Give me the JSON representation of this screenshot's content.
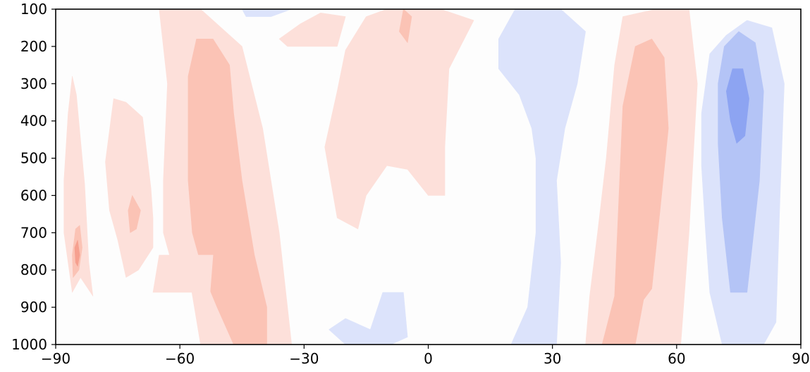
{
  "chart_data": {
    "type": "contourf",
    "title": "",
    "xlabel": "",
    "ylabel": "",
    "xlim": [
      -90,
      90
    ],
    "ylim": [
      1000,
      100
    ],
    "y_inverted": true,
    "x_ticks": [
      -90,
      -60,
      -30,
      0,
      30,
      60,
      90
    ],
    "x_tick_labels": [
      "−90",
      "−60",
      "−30",
      "0",
      "30",
      "60",
      "90"
    ],
    "y_ticks": [
      100,
      200,
      300,
      400,
      500,
      600,
      700,
      800,
      900,
      1000
    ],
    "y_tick_labels": [
      "100",
      "200",
      "300",
      "400",
      "500",
      "600",
      "700",
      "800",
      "900",
      "1000"
    ],
    "grid": false,
    "colormap": "diverging blue-white-red",
    "level_colors": {
      "neg3": "#8da4f2",
      "neg2": "#b4c4f6",
      "neg1": "#dce3fb",
      "zero": "#fdfdfd",
      "pos1": "#fde0da",
      "pos2": "#fbc3b5",
      "pos3": "#f6a08f",
      "pos4": "#f4826b"
    },
    "regions": [
      {
        "level": "pos1",
        "points": [
          [
            -65,
            100
          ],
          [
            -55,
            100
          ],
          [
            -45,
            200
          ],
          [
            -40,
            420
          ],
          [
            -36,
            700
          ],
          [
            -33,
            1000
          ],
          [
            -55,
            1000
          ],
          [
            -58,
            800
          ],
          [
            -62,
            780
          ],
          [
            -64,
            700
          ],
          [
            -64,
            560
          ],
          [
            -63,
            300
          ]
        ]
      },
      {
        "level": "pos2",
        "points": [
          [
            -58,
            280
          ],
          [
            -56,
            180
          ],
          [
            -52,
            180
          ],
          [
            -48,
            250
          ],
          [
            -47,
            380
          ],
          [
            -45,
            560
          ],
          [
            -42,
            760
          ],
          [
            -39,
            900
          ],
          [
            -39,
            1000
          ],
          [
            -47,
            1000
          ],
          [
            -51,
            900
          ],
          [
            -54,
            820
          ],
          [
            -57,
            700
          ],
          [
            -58,
            560
          ],
          [
            -58,
            420
          ]
        ]
      },
      {
        "level": "pos1",
        "points": [
          [
            -88,
            560
          ],
          [
            -87,
            380
          ],
          [
            -86,
            280
          ],
          [
            -85,
            330
          ],
          [
            -83,
            570
          ],
          [
            -82,
            780
          ],
          [
            -81,
            870
          ],
          [
            -84,
            820
          ],
          [
            -86,
            860
          ],
          [
            -88,
            700
          ]
        ]
      },
      {
        "level": "pos2",
        "points": [
          [
            -86,
            760
          ],
          [
            -85.2,
            690
          ],
          [
            -84.2,
            680
          ],
          [
            -83.6,
            740
          ],
          [
            -84.4,
            800
          ],
          [
            -85.8,
            820
          ]
        ]
      },
      {
        "level": "pos3",
        "points": [
          [
            -85.4,
            740
          ],
          [
            -84.7,
            720
          ],
          [
            -84.2,
            760
          ],
          [
            -84.7,
            790
          ],
          [
            -85.2,
            780
          ]
        ]
      },
      {
        "level": "pos1",
        "points": [
          [
            -78,
            510
          ],
          [
            -76,
            340
          ],
          [
            -73,
            350
          ],
          [
            -69,
            390
          ],
          [
            -67,
            580
          ],
          [
            -66.5,
            660
          ],
          [
            -66.5,
            740
          ],
          [
            -70,
            800
          ],
          [
            -73,
            820
          ],
          [
            -75,
            720
          ],
          [
            -77,
            640
          ]
        ]
      },
      {
        "level": "pos2",
        "points": [
          [
            -72.5,
            640
          ],
          [
            -71.5,
            600
          ],
          [
            -69.5,
            640
          ],
          [
            -70.5,
            690
          ],
          [
            -72,
            700
          ]
        ]
      },
      {
        "level": "pos1",
        "points": [
          [
            -65,
            760
          ],
          [
            -66.5,
            860
          ],
          [
            -56,
            860
          ],
          [
            -55,
            1000
          ],
          [
            -53,
            900
          ],
          [
            -52,
            760
          ]
        ]
      },
      {
        "level": "pos1",
        "points": [
          [
            -20,
            210
          ],
          [
            -15,
            120
          ],
          [
            -10,
            100
          ],
          [
            3,
            100
          ],
          [
            11,
            130
          ],
          [
            5,
            260
          ],
          [
            4,
            470
          ],
          [
            4,
            600
          ],
          [
            0,
            600
          ],
          [
            -5,
            530
          ],
          [
            -10,
            520
          ],
          [
            -15,
            600
          ],
          [
            -17,
            690
          ],
          [
            -22,
            660
          ],
          [
            -25,
            470
          ],
          [
            -22,
            320
          ]
        ]
      },
      {
        "level": "pos1",
        "points": [
          [
            -36,
            180
          ],
          [
            -31,
            140
          ],
          [
            -26,
            110
          ],
          [
            -20,
            120
          ],
          [
            -22,
            200
          ],
          [
            -28,
            200
          ],
          [
            -34,
            200
          ]
        ]
      },
      {
        "level": "pos2",
        "points": [
          [
            -7,
            160
          ],
          [
            -6,
            100
          ],
          [
            -4,
            120
          ],
          [
            -5,
            190
          ]
        ]
      },
      {
        "level": "neg1",
        "points": [
          [
            -45,
            100
          ],
          [
            -33,
            100
          ],
          [
            -38,
            120
          ],
          [
            -44,
            120
          ]
        ]
      },
      {
        "level": "neg1",
        "points": [
          [
            17,
            180
          ],
          [
            21,
            100
          ],
          [
            32,
            100
          ],
          [
            38,
            160
          ],
          [
            36,
            300
          ],
          [
            33,
            420
          ],
          [
            31,
            560
          ],
          [
            32,
            780
          ],
          [
            31,
            1000
          ],
          [
            20,
            1000
          ],
          [
            24,
            900
          ],
          [
            26,
            700
          ],
          [
            26,
            500
          ],
          [
            25,
            420
          ],
          [
            22,
            330
          ],
          [
            17,
            260
          ]
        ]
      },
      {
        "level": "neg1",
        "points": [
          [
            -24,
            960
          ],
          [
            -20,
            930
          ],
          [
            -14,
            960
          ],
          [
            -11,
            860
          ],
          [
            -6,
            860
          ],
          [
            -5,
            980
          ],
          [
            -9,
            1000
          ],
          [
            -20,
            1000
          ]
        ]
      },
      {
        "level": "pos1",
        "points": [
          [
            55,
            100
          ],
          [
            63,
            100
          ],
          [
            65,
            300
          ],
          [
            63,
            700
          ],
          [
            61,
            1000
          ],
          [
            38,
            1000
          ],
          [
            39,
            870
          ],
          [
            41,
            690
          ],
          [
            43,
            500
          ],
          [
            45,
            250
          ],
          [
            47,
            120
          ]
        ]
      },
      {
        "level": "pos2",
        "points": [
          [
            50,
            200
          ],
          [
            54,
            180
          ],
          [
            57,
            230
          ],
          [
            58,
            420
          ],
          [
            56,
            640
          ],
          [
            54,
            850
          ],
          [
            52,
            880
          ],
          [
            50,
            1000
          ],
          [
            42,
            1000
          ],
          [
            45,
            870
          ],
          [
            46,
            620
          ],
          [
            47,
            360
          ]
        ]
      },
      {
        "level": "neg1",
        "points": [
          [
            66,
            380
          ],
          [
            68,
            220
          ],
          [
            72,
            170
          ],
          [
            77,
            130
          ],
          [
            83,
            150
          ],
          [
            86,
            300
          ],
          [
            85,
            600
          ],
          [
            84,
            940
          ],
          [
            81,
            1000
          ],
          [
            71,
            1000
          ],
          [
            68,
            860
          ],
          [
            67,
            700
          ],
          [
            66,
            520
          ]
        ]
      },
      {
        "level": "neg2",
        "points": [
          [
            70,
            300
          ],
          [
            71.5,
            200
          ],
          [
            75,
            160
          ],
          [
            79,
            190
          ],
          [
            81,
            320
          ],
          [
            80,
            560
          ],
          [
            77,
            860
          ],
          [
            73,
            860
          ],
          [
            71,
            660
          ],
          [
            70,
            460
          ]
        ]
      },
      {
        "level": "neg3",
        "points": [
          [
            72,
            320
          ],
          [
            73.5,
            260
          ],
          [
            76,
            260
          ],
          [
            77.5,
            340
          ],
          [
            76.5,
            440
          ],
          [
            74.5,
            460
          ],
          [
            73,
            400
          ]
        ]
      }
    ]
  }
}
